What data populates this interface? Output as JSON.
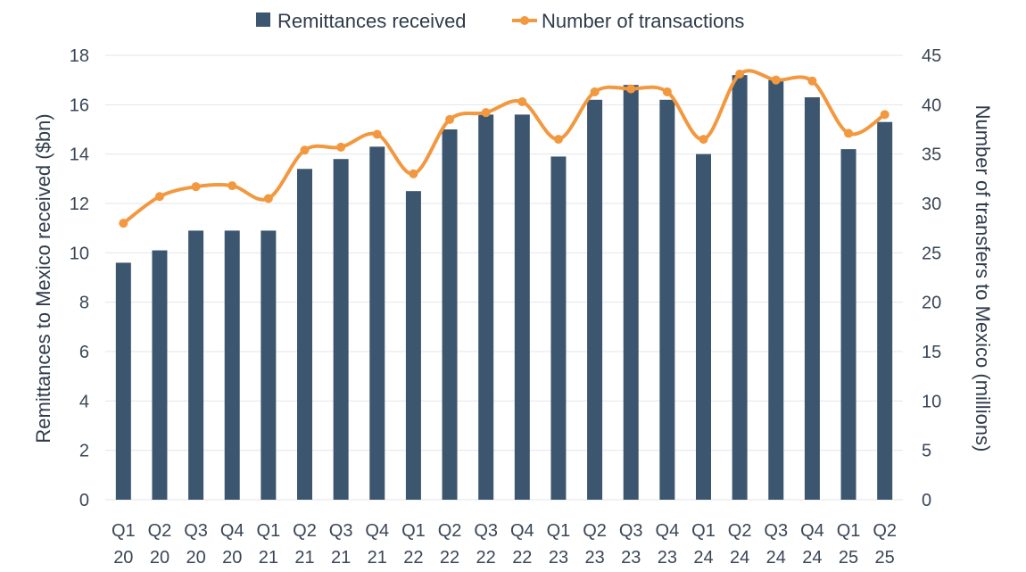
{
  "chart_data": {
    "type": "bar",
    "categories": [
      [
        "Q1",
        "20"
      ],
      [
        "Q2",
        "20"
      ],
      [
        "Q3",
        "20"
      ],
      [
        "Q4",
        "20"
      ],
      [
        "Q1",
        "21"
      ],
      [
        "Q2",
        "21"
      ],
      [
        "Q3",
        "21"
      ],
      [
        "Q4",
        "21"
      ],
      [
        "Q1",
        "22"
      ],
      [
        "Q2",
        "22"
      ],
      [
        "Q3",
        "22"
      ],
      [
        "Q4",
        "22"
      ],
      [
        "Q1",
        "23"
      ],
      [
        "Q2",
        "23"
      ],
      [
        "Q3",
        "23"
      ],
      [
        "Q4",
        "23"
      ],
      [
        "Q1",
        "24"
      ],
      [
        "Q2",
        "24"
      ],
      [
        "Q3",
        "24"
      ],
      [
        "Q4",
        "24"
      ],
      [
        "Q1",
        "25"
      ],
      [
        "Q2",
        "25"
      ]
    ],
    "series": [
      {
        "name": "Remittances received",
        "type": "bar",
        "axis": "left",
        "color": "#3d5670",
        "values": [
          9.6,
          10.1,
          10.9,
          10.9,
          10.9,
          13.4,
          13.8,
          14.3,
          12.5,
          15.0,
          15.6,
          15.6,
          13.9,
          16.2,
          16.8,
          16.2,
          14.0,
          17.2,
          17.0,
          16.3,
          14.2,
          15.3
        ]
      },
      {
        "name": "Number of transactions",
        "type": "line",
        "axis": "right",
        "color": "#f2983f",
        "values": [
          28.0,
          30.7,
          31.7,
          31.8,
          30.5,
          35.4,
          35.7,
          37.0,
          33.0,
          38.5,
          39.2,
          40.3,
          36.5,
          41.3,
          41.6,
          41.3,
          36.5,
          43.1,
          42.5,
          42.4,
          37.1,
          39.0
        ]
      }
    ],
    "ylabel": "Remittances to Mexico received ($bn)",
    "y2label": "Number of transfers to Mexico (millions)",
    "ylim": [
      0,
      18
    ],
    "yticks": [
      0,
      2,
      4,
      6,
      8,
      10,
      12,
      14,
      16,
      18
    ],
    "y2lim": [
      0,
      45
    ],
    "y2ticks": [
      0,
      5,
      10,
      15,
      20,
      25,
      30,
      35,
      40,
      45
    ],
    "grid": true,
    "legend_position": "top-center"
  }
}
